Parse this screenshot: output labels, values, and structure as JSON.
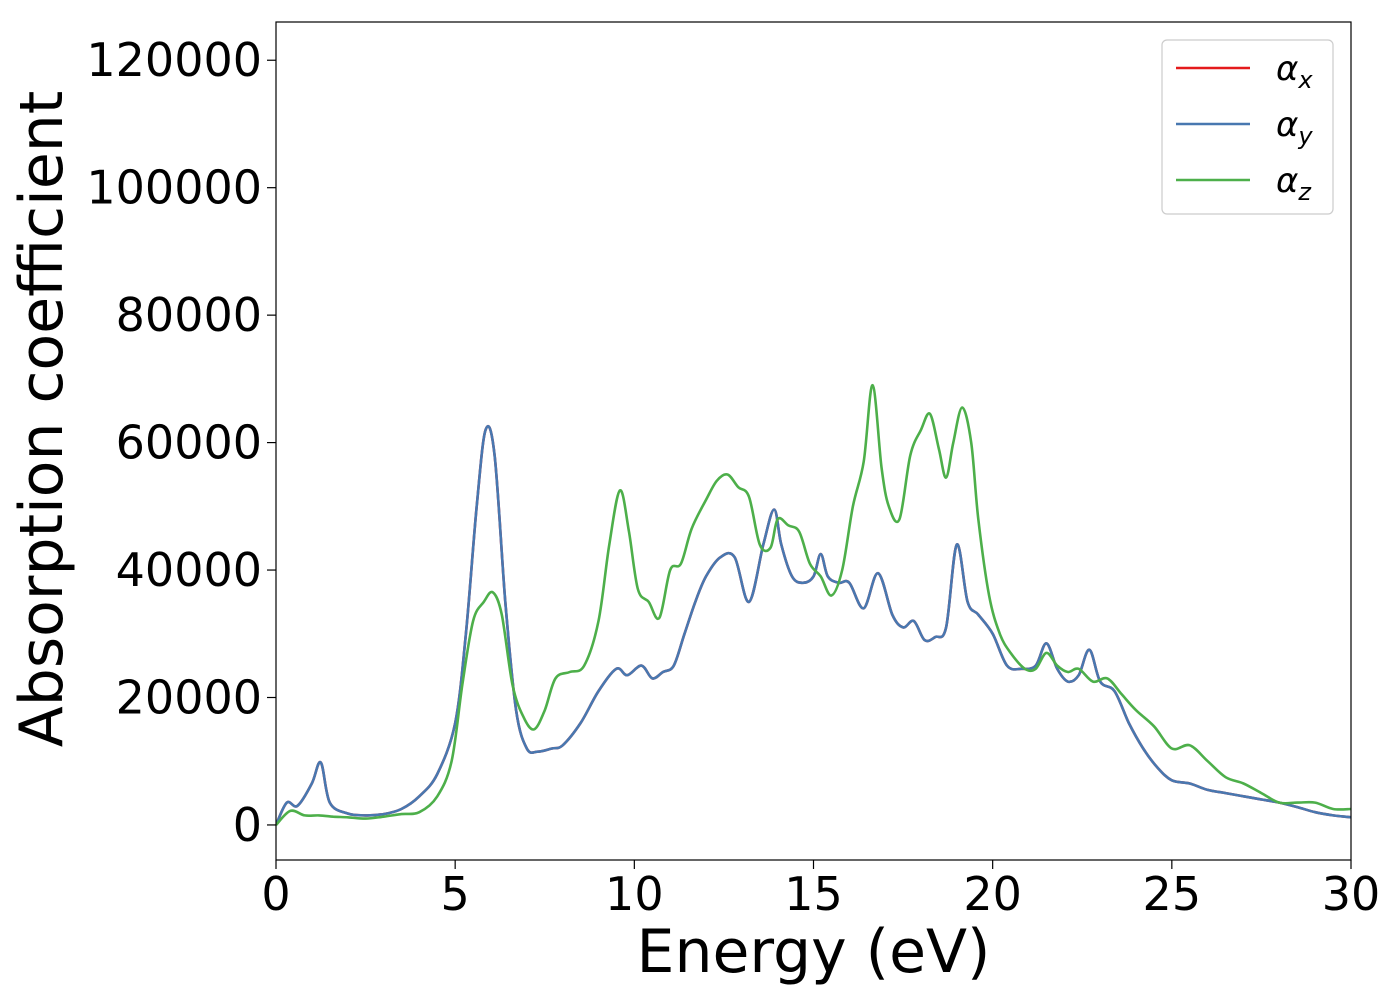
{
  "chart_data": {
    "type": "line",
    "title": "",
    "xlabel": "Energy (eV)",
    "ylabel": "Absorption coefficient",
    "xlim": [
      0,
      30
    ],
    "ylim": [
      -5500,
      126000
    ],
    "xticks": [
      "0",
      "5",
      "10",
      "15",
      "20",
      "25",
      "30"
    ],
    "yticks": [
      "0",
      "20000",
      "40000",
      "60000",
      "80000",
      "100000",
      "120000"
    ],
    "grid": false,
    "legend_position": "top-right",
    "series": [
      {
        "name": "αx",
        "legend_base": "α",
        "legend_sub": "x",
        "color": "#e41a1c",
        "x": [
          0,
          0.3,
          0.6,
          1.0,
          1.25,
          1.5,
          2.0,
          2.5,
          3.0,
          3.5,
          4.0,
          4.5,
          5.0,
          5.3,
          5.6,
          5.85,
          6.1,
          6.4,
          6.7,
          7.0,
          7.3,
          7.7,
          8.0,
          8.5,
          9.0,
          9.5,
          9.8,
          10.2,
          10.5,
          10.8,
          11.1,
          11.4,
          11.7,
          12.0,
          12.4,
          12.8,
          13.2,
          13.6,
          13.9,
          14.1,
          14.4,
          14.7,
          15.0,
          15.2,
          15.4,
          15.7,
          16.0,
          16.4,
          16.8,
          17.2,
          17.5,
          17.8,
          18.1,
          18.4,
          18.7,
          19.0,
          19.3,
          19.6,
          20.0,
          20.4,
          20.8,
          21.2,
          21.5,
          21.8,
          22.1,
          22.4,
          22.7,
          23.0,
          23.4,
          23.8,
          24.2,
          24.6,
          25.0,
          25.5,
          26.0,
          26.5,
          27.0,
          27.5,
          28.0,
          28.5,
          29.0,
          29.5,
          30.0
        ],
        "y": [
          0,
          3500,
          3000,
          6500,
          9800,
          3500,
          1800,
          1500,
          1700,
          2500,
          4500,
          8000,
          16000,
          30000,
          50000,
          62000,
          58000,
          35000,
          18000,
          12000,
          11500,
          12000,
          12500,
          16000,
          21000,
          24500,
          23500,
          25000,
          23000,
          24000,
          25000,
          30000,
          35000,
          39000,
          42000,
          42000,
          35000,
          44000,
          49500,
          44000,
          39000,
          38000,
          39000,
          42500,
          39000,
          38000,
          38000,
          34000,
          39500,
          33000,
          31000,
          32000,
          29000,
          29500,
          31000,
          44000,
          35000,
          33000,
          30000,
          25000,
          24500,
          25000,
          28500,
          24500,
          22500,
          23500,
          27500,
          22500,
          21000,
          16000,
          12000,
          9000,
          7000,
          6500,
          5500,
          5000,
          4500,
          4000,
          3500,
          2800,
          2000,
          1500,
          1200
        ]
      },
      {
        "name": "αy",
        "legend_base": "α",
        "legend_sub": "y",
        "color": "#4878b0",
        "x": [
          0,
          0.3,
          0.6,
          1.0,
          1.25,
          1.5,
          2.0,
          2.5,
          3.0,
          3.5,
          4.0,
          4.5,
          5.0,
          5.3,
          5.6,
          5.85,
          6.1,
          6.4,
          6.7,
          7.0,
          7.3,
          7.7,
          8.0,
          8.5,
          9.0,
          9.5,
          9.8,
          10.2,
          10.5,
          10.8,
          11.1,
          11.4,
          11.7,
          12.0,
          12.4,
          12.8,
          13.2,
          13.6,
          13.9,
          14.1,
          14.4,
          14.7,
          15.0,
          15.2,
          15.4,
          15.7,
          16.0,
          16.4,
          16.8,
          17.2,
          17.5,
          17.8,
          18.1,
          18.4,
          18.7,
          19.0,
          19.3,
          19.6,
          20.0,
          20.4,
          20.8,
          21.2,
          21.5,
          21.8,
          22.1,
          22.4,
          22.7,
          23.0,
          23.4,
          23.8,
          24.2,
          24.6,
          25.0,
          25.5,
          26.0,
          26.5,
          27.0,
          27.5,
          28.0,
          28.5,
          29.0,
          29.5,
          30.0
        ],
        "y": [
          0,
          3500,
          3000,
          6500,
          9800,
          3500,
          1800,
          1500,
          1700,
          2500,
          4500,
          8000,
          16000,
          30000,
          50000,
          62000,
          58000,
          35000,
          18000,
          12000,
          11500,
          12000,
          12500,
          16000,
          21000,
          24500,
          23500,
          25000,
          23000,
          24000,
          25000,
          30000,
          35000,
          39000,
          42000,
          42000,
          35000,
          44000,
          49500,
          44000,
          39000,
          38000,
          39000,
          42500,
          39000,
          38000,
          38000,
          34000,
          39500,
          33000,
          31000,
          32000,
          29000,
          29500,
          31000,
          44000,
          35000,
          33000,
          30000,
          25000,
          24500,
          25000,
          28500,
          24500,
          22500,
          23500,
          27500,
          22500,
          21000,
          16000,
          12000,
          9000,
          7000,
          6500,
          5500,
          5000,
          4500,
          4000,
          3500,
          2800,
          2000,
          1500,
          1200
        ]
      },
      {
        "name": "αz",
        "legend_base": "α",
        "legend_sub": "z",
        "color": "#4daf4a",
        "x": [
          0,
          0.4,
          0.8,
          1.2,
          1.6,
          2.0,
          2.5,
          3.0,
          3.5,
          4.0,
          4.5,
          4.9,
          5.2,
          5.5,
          5.8,
          6.05,
          6.3,
          6.6,
          6.9,
          7.2,
          7.5,
          7.8,
          8.2,
          8.6,
          9.0,
          9.3,
          9.6,
          9.85,
          10.1,
          10.4,
          10.7,
          11.0,
          11.3,
          11.6,
          12.0,
          12.3,
          12.6,
          12.9,
          13.2,
          13.5,
          13.8,
          14.0,
          14.3,
          14.6,
          14.9,
          15.2,
          15.5,
          15.8,
          16.1,
          16.4,
          16.65,
          16.9,
          17.1,
          17.4,
          17.7,
          18.0,
          18.25,
          18.5,
          18.7,
          18.9,
          19.15,
          19.4,
          19.6,
          19.9,
          20.2,
          20.5,
          20.9,
          21.2,
          21.5,
          21.8,
          22.1,
          22.4,
          22.8,
          23.2,
          23.6,
          24.0,
          24.5,
          25.0,
          25.5,
          26.0,
          26.5,
          27.0,
          27.5,
          28.0,
          28.5,
          29.0,
          29.5,
          30.0
        ],
        "y": [
          0,
          2200,
          1500,
          1500,
          1300,
          1200,
          1000,
          1300,
          1700,
          2000,
          4500,
          10000,
          22000,
          32000,
          35000,
          36500,
          33000,
          22000,
          17000,
          15000,
          18000,
          23000,
          24000,
          25000,
          32000,
          44000,
          52500,
          46000,
          37000,
          35000,
          32500,
          40000,
          41000,
          46500,
          51000,
          54000,
          55000,
          53000,
          51500,
          44000,
          43500,
          48000,
          47000,
          46000,
          41000,
          39000,
          36000,
          40000,
          50000,
          57000,
          69000,
          56000,
          50000,
          48000,
          58000,
          62000,
          64500,
          59000,
          54500,
          60000,
          65500,
          60000,
          48000,
          36000,
          30000,
          27000,
          24500,
          24500,
          27000,
          25000,
          24000,
          24500,
          22500,
          23000,
          20500,
          18000,
          15500,
          12000,
          12500,
          10000,
          7500,
          6500,
          5000,
          3500,
          3500,
          3500,
          2500,
          2500
        ]
      }
    ]
  }
}
